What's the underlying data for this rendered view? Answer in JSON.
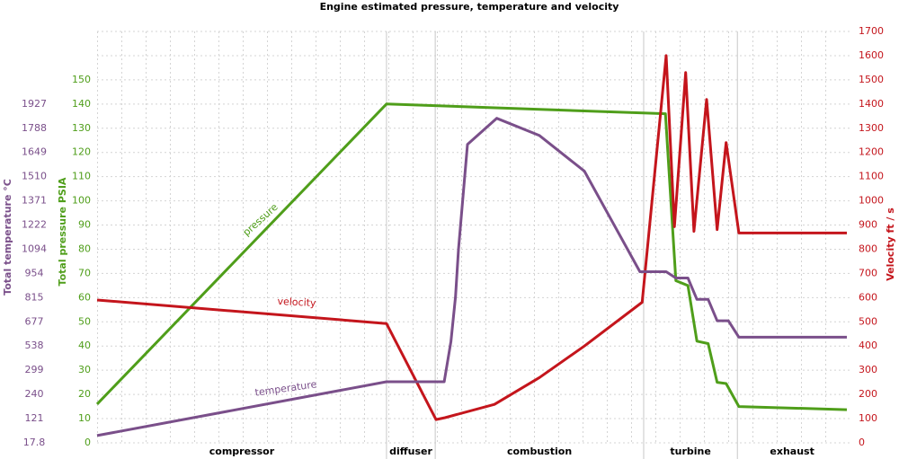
{
  "chart_data": {
    "type": "line",
    "title": "Engine estimated pressure, temperature and velocity",
    "xlim": [
      0,
      100
    ],
    "sections": [
      {
        "name": "compressor",
        "start": 0,
        "end": 38.6
      },
      {
        "name": "diffuser",
        "start": 38.6,
        "end": 45.1
      },
      {
        "name": "combustion",
        "start": 45.1,
        "end": 72.9
      },
      {
        "name": "turbine",
        "start": 72.9,
        "end": 85.4
      },
      {
        "name": "exhaust",
        "start": 85.4,
        "end": 100
      }
    ],
    "ylabel": "Total pressure PSIA",
    "ylim": [
      0,
      170
    ],
    "yticks": [
      0,
      10,
      20,
      30,
      40,
      50,
      60,
      70,
      80,
      90,
      100,
      110,
      120,
      130,
      140,
      150
    ],
    "y2label": "Velocity ft / s",
    "y2lim": [
      0,
      1700
    ],
    "y2ticks": [
      0,
      100,
      200,
      300,
      400,
      500,
      600,
      700,
      800,
      900,
      1000,
      1100,
      1200,
      1300,
      1400,
      1500,
      1600,
      1700
    ],
    "y3label": "Total temperature °C",
    "y3ticks": [
      17.8,
      121,
      240,
      299,
      538,
      677,
      815,
      954,
      1094,
      1222,
      1371,
      1510,
      1649,
      1788,
      1927
    ],
    "grid": true,
    "series": [
      {
        "name": "pressure",
        "color": "#4f9e1a",
        "axis": "y",
        "x": [
          0,
          38.6,
          75.8,
          77.2,
          78.8,
          80.0,
          81.5,
          82.7,
          83.9,
          85.6,
          100
        ],
        "values": [
          16,
          140,
          136,
          67,
          65,
          42,
          41,
          25,
          24.5,
          15,
          13.7
        ]
      },
      {
        "name": "velocity",
        "color": "#c4151c",
        "axis": "y2",
        "x": [
          0,
          38.6,
          45.2,
          46.4,
          53.0,
          59.0,
          65.0,
          72.7,
          75.9,
          77.0,
          78.5,
          79.6,
          81.3,
          82.7,
          83.9,
          85.6,
          100
        ],
        "values": [
          590,
          493,
          96,
          104,
          159,
          270,
          400,
          581,
          1600,
          893,
          1530,
          874,
          1419,
          881,
          1241,
          867,
          867
        ]
      },
      {
        "name": "temperature",
        "color": "#7a4f8a",
        "axis": "y3",
        "x": [
          0,
          38.6,
          46.3,
          47.2,
          47.8,
          48.2,
          49.4,
          53.3,
          59.0,
          65.0,
          72.4,
          75.9,
          77.2,
          78.8,
          80.0,
          81.5,
          82.7,
          84.2,
          85.6,
          100
        ],
        "values": [
          49,
          271,
          271,
          564,
          821,
          1094,
          1695,
          1845,
          1746,
          1541,
          964,
          964,
          928,
          928,
          805,
          805,
          683,
          683,
          589,
          589
        ]
      }
    ]
  }
}
